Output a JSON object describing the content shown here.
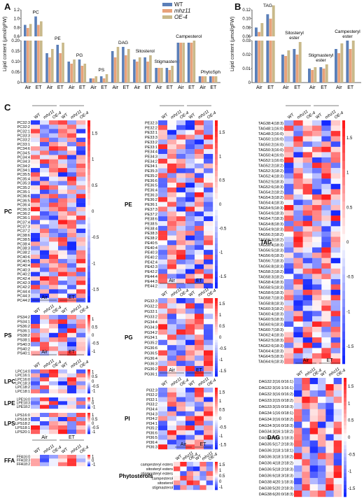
{
  "panels": {
    "A": "A",
    "B": "B",
    "C": "C"
  },
  "legend": {
    "items": [
      {
        "label": "WT",
        "color": "#5b7fb8"
      },
      {
        "label": "mhz11",
        "color": "#e8a27a"
      },
      {
        "label": "OE-4",
        "color": "#c9b98a"
      }
    ]
  },
  "axis": {
    "ylabel_A": "Lipid content (μmol/gFW)",
    "ylabel_B": "Lipid content (μmol/gFW)",
    "cond_air": "Air",
    "cond_et": "ET"
  },
  "chart_data": [
    {
      "type": "bar",
      "panel": "A",
      "ylabel": "Lipid content (μmol/gFW)",
      "yticks_upper": [
        "1.2",
        "1.0",
        "0.8",
        "0.6"
      ],
      "yticks_lower": [
        "0.20",
        "0.15",
        "0.10",
        "0.05",
        "0"
      ],
      "groups": [
        {
          "label": "PC",
          "conditions": [
            "Air",
            "ET"
          ],
          "values": [
            [
              0.86,
              0.79,
              0.88
            ],
            [
              1.05,
              0.86,
              0.94
            ]
          ]
        },
        {
          "label": "PE",
          "conditions": [
            "Air",
            "ET"
          ],
          "values": [
            [
              0.14,
              0.12,
              0.16
            ],
            [
              0.18,
              0.14,
              0.19
            ]
          ]
        },
        {
          "label": "PG",
          "conditions": [
            "Air",
            "ET"
          ],
          "values": [
            [
              0.1,
              0.09,
              0.11
            ],
            [
              0.11,
              0.08,
              0.09
            ]
          ]
        },
        {
          "label": "PS",
          "conditions": [
            "Air",
            "ET"
          ],
          "values": [
            [
              0.02,
              0.02,
              0.03
            ],
            [
              0.03,
              0.02,
              0.04
            ]
          ]
        },
        {
          "label": "DAG",
          "conditions": [
            "Air",
            "ET"
          ],
          "values": [
            [
              0.15,
              0.12,
              0.17
            ],
            [
              0.17,
              0.13,
              0.16
            ]
          ]
        },
        {
          "label": "Sitosterol",
          "conditions": [
            "Air",
            "ET"
          ],
          "values": [
            [
              0.11,
              0.1,
              0.12
            ],
            [
              0.12,
              0.1,
              0.13
            ]
          ]
        },
        {
          "label": "Stigmasterol",
          "conditions": [
            "Air",
            "ET"
          ],
          "values": [
            [
              0.07,
              0.07,
              0.07
            ],
            [
              0.07,
              0.06,
              0.08
            ]
          ]
        },
        {
          "label": "Campesterol",
          "conditions": [
            "Air",
            "ET"
          ],
          "values": [
            [
              0.19,
              0.19,
              0.19
            ],
            [
              0.19,
              0.19,
              0.2
            ]
          ]
        },
        {
          "label": "PhytoSph",
          "conditions": [
            "Air",
            "ET"
          ],
          "values": [
            [
              0.03,
              0.03,
              0.03
            ],
            [
              0.03,
              0.03,
              0.03
            ]
          ]
        }
      ]
    },
    {
      "type": "bar",
      "panel": "B",
      "ylabel": "Lipid content (μmol/gFW)",
      "yticks_upper": [
        "0.12",
        "0.10",
        "0.08",
        "0.06"
      ],
      "yticks_lower": [
        "0.03",
        "0.02",
        "0.01",
        "0"
      ],
      "groups": [
        {
          "label": "TAG",
          "conditions": [
            "Air",
            "ET"
          ],
          "values": [
            [
              0.08,
              0.07,
              0.09
            ],
            [
              0.11,
              0.1,
              0.13
            ]
          ]
        },
        {
          "label": "Sitosteryl ester",
          "conditions": [
            "Air",
            "ET"
          ],
          "values": [
            [
              0.02,
              0.019,
              0.023
            ],
            [
              0.024,
              0.02,
              0.029
            ]
          ]
        },
        {
          "label": "Stigmasteryl ester",
          "conditions": [
            "Air",
            "ET"
          ],
          "values": [
            [
              0.01,
              0.009,
              0.011
            ],
            [
              0.011,
              0.01,
              0.013
            ]
          ]
        },
        {
          "label": "Campesteryl ester",
          "conditions": [
            "Air",
            "ET"
          ],
          "values": [
            [
              0.024,
              0.021,
              0.028
            ],
            [
              0.03,
              0.024,
              0.033
            ]
          ]
        }
      ]
    }
  ],
  "heatmaps": {
    "col_groups": [
      "Air",
      "ET"
    ],
    "col_labels": [
      "WT",
      "mhz11",
      "OE-4",
      "WT",
      "mhz11",
      "OE-4"
    ],
    "scale_ticks": [
      "1.5",
      "1",
      "0.5",
      "0",
      "-0.5",
      "-1",
      "-1.5"
    ],
    "PC": {
      "title": "PC",
      "rows": [
        "PC32:3",
        "PC32:2",
        "PC32:1",
        "PC33:3",
        "PC33:2",
        "PC33:1",
        "PC34:6",
        "PC34:5",
        "PC34:4",
        "PC34:3",
        "PC34:2",
        "PC34:1",
        "PC35:5",
        "PC35:4",
        "PC35:3",
        "PC35:2",
        "PC35:1",
        "PC36:6",
        "PC36:5",
        "PC36:4",
        "PC36:3",
        "PC36:2",
        "PC36:1",
        "PC37:4",
        "PC37:3",
        "PC37:2",
        "PC38:6",
        "PC38:5",
        "PC38:4",
        "PC38:3",
        "PC38:2",
        "PC40:6",
        "PC40:5",
        "PC40:4",
        "PC40:3",
        "PC40:2",
        "PC42:4",
        "PC42:3",
        "PC42:2",
        "PC44:4",
        "PC44:3",
        "PC44:2"
      ]
    },
    "PE": {
      "title": "PE",
      "rows": [
        "PE32:3",
        "PE32:2",
        "PE32:1",
        "PE33:3",
        "PE33:2",
        "PE33:1",
        "PE34:4",
        "PE34:3",
        "PE34:2",
        "PE34:1",
        "PE35:3",
        "PE35:2",
        "PE36:6",
        "PE36:5",
        "PE36:4",
        "PE36:3",
        "PE36:2",
        "PE36:1",
        "PE37:3",
        "PE37:2",
        "PE38:6",
        "PE38:5",
        "PE38:4",
        "PE38:3",
        "PE38:2",
        "PE40:5",
        "PE40:4",
        "PE40:3",
        "PE40:2",
        "PE42:4",
        "PE42:3",
        "PE42:2",
        "PE44:4",
        "PE44:3",
        "PE44:2"
      ]
    },
    "TAG": {
      "title": "TAG",
      "rows": [
        "TAG38:4(18:3)",
        "TAG48:1(16:0)",
        "TAG48:2(16:0)",
        "TAG50:1(16:0)",
        "TAG50:2(16:0)",
        "TAG50:3(16:0)",
        "TAG50:4(16:0)",
        "TAG52:1(16:0)",
        "TAG52:2(18:2)",
        "TAG52:3(18:2)",
        "TAG52:4(18:3)",
        "TAG52:5(18:3)",
        "TAG52:6(18:3)",
        "TAG54:2(18:2)",
        "TAG54:3(18:2)",
        "TAG54:4(18:3)",
        "TAG54:5(18:3)",
        "TAG54:6(18:3)",
        "TAG54:7(18:3)",
        "TAG54:8(18:3)",
        "TAG54:9(18:3)",
        "TAG56:2(18:2)",
        "TAG56:3(18:2)",
        "TAG56:4(18:3)",
        "TAG56:5(18:3)",
        "TAG56:6(18:3)",
        "TAG56:7(18:3)",
        "TAG56:8(18:3)",
        "TAG58:2(18:2)",
        "TAG58:3(18:2)",
        "TAG58:4(18:3)",
        "TAG58:5(18:3)",
        "TAG58:6(18:3)",
        "TAG58:7(18:3)",
        "TAG58:8(18:3)",
        "TAG60:3(18:2)",
        "TAG60:4(18:3)",
        "TAG60:5(18:3)",
        "TAG60:6(18:3)",
        "TAG60:7(18:3)",
        "TAG62:4(18:3)",
        "TAG62:5(18:3)",
        "TAG62:6(18:3)",
        "TAG64:4(18:3)",
        "TAG64:5(18:3)",
        "TAG64:6(18:3)"
      ]
    },
    "PS": {
      "title": "PS",
      "rows": [
        "PS34:2",
        "PS34:1",
        "PS36:2",
        "PS36:1",
        "PS38:2",
        "PS38:1",
        "PS40:3",
        "PS40:2",
        "PS40:1"
      ]
    },
    "PG": {
      "title": "PG",
      "rows": [
        "PG32:3",
        "PG32:2",
        "PG32:1",
        "PG33:2",
        "PG34:4",
        "PG34:3",
        "PG34:2",
        "PG34:1",
        "PG35:2",
        "PG36:6",
        "PG36:5",
        "PG36:4",
        "PG36:3",
        "PG36:2",
        "PG36:1"
      ]
    },
    "LPC": {
      "title": "LPC",
      "rows": [
        "LPC14:0",
        "LPC16:1",
        "LPC16:0",
        "LPC18:3",
        "LPC18:2",
        "LPC18:1"
      ]
    },
    "LPE": {
      "title": "LPE",
      "rows": [
        "LPE16:0",
        "LPE18:3",
        "LPE18:2"
      ]
    },
    "LPS": {
      "title": "LPS",
      "rows": [
        "LPS16:0",
        "LPS18:3",
        "LPS18:2",
        "LPS18:1",
        "LPS20:1"
      ]
    },
    "FFA": {
      "title": "FFA",
      "rows": [
        "FFA16:0",
        "FFA18:3",
        "FFA18:2"
      ]
    },
    "PI": {
      "title": "PI",
      "rows": [
        "PI32:3",
        "PI32:2",
        "PI32:1",
        "PI33:2",
        "PI34:4",
        "PI34:3",
        "PI34:2",
        "PI34:1",
        "PI35:2",
        "PI36:6",
        "PI36:5",
        "PI36:4",
        "PI36:3"
      ]
    },
    "Phytosterols": {
      "title": "Phytosterols",
      "rows": [
        "campesteryl esters",
        "sitosteryl esters",
        "stigmasteryl esters",
        "campesterol",
        "sitosterol",
        "stigmasterol"
      ]
    },
    "DAG": {
      "title": "DAG",
      "rows": [
        "DAG32:2(16:0/16:1)",
        "DAG32:3(16:1/16:1)",
        "DAG32:3(16:0/16:2)",
        "DAG33:2(15:0/18:2)",
        "DAG33:3(15:0/18:3)",
        "DAG34:1(16:0/18:1)",
        "DAG34:2(16:0/18:2)",
        "DAG34:3(16:0/18:3)",
        "DAG34:3(16:1/18:2)",
        "DAG34:4(16:1/18:3)",
        "DAG35:5(17:2/18:3)",
        "DAG36:2(18:1/18:1)",
        "DAG36:3(18:1/18:2)",
        "DAG36:4(18:2/18:2)",
        "DAG36:5(18:2/18:3)",
        "DAG36:6(18:3/18:3)",
        "DAG38:4(20:1/18:3)",
        "DAG38:5(20:2/18:3)",
        "DAG38:6(20:0/18:3)"
      ]
    }
  }
}
